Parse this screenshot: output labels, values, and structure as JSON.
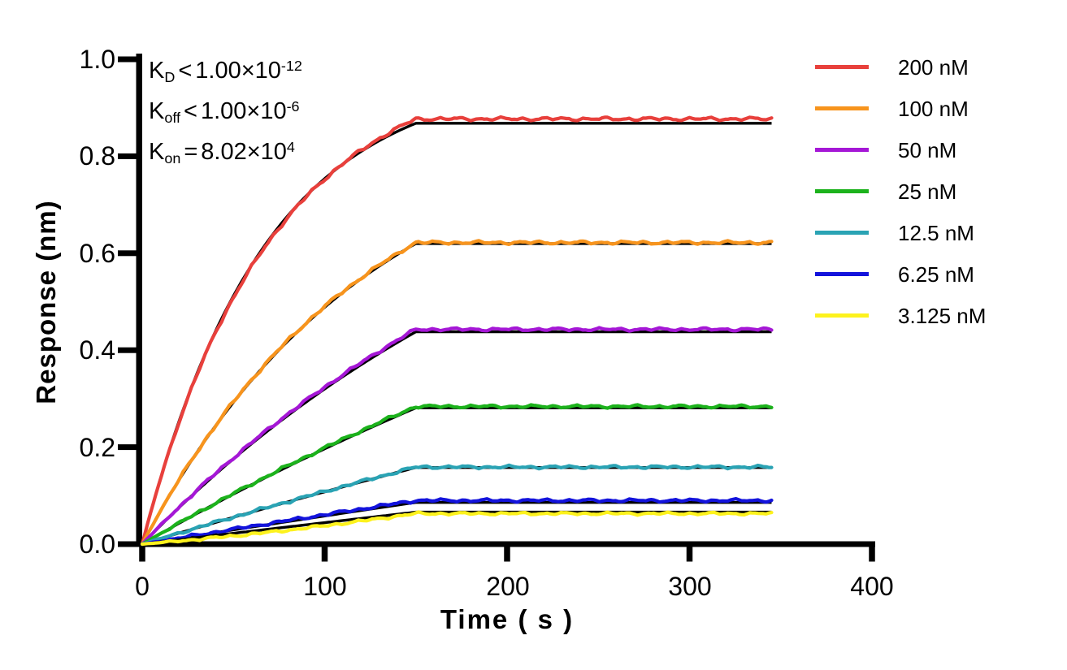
{
  "chart_data": {
    "type": "line",
    "title": "",
    "xlabel": "Time ( s )",
    "ylabel": "Response (nm)",
    "xlim": [
      0,
      400
    ],
    "ylim": [
      0.0,
      1.0
    ],
    "x_ticks": [
      "0",
      "100",
      "200",
      "300",
      "400"
    ],
    "y_ticks": [
      "0.0",
      "0.2",
      "0.4",
      "0.6",
      "0.8",
      "1.0"
    ],
    "grid": "off",
    "legend_position": "right-outside",
    "association_end_s": 150,
    "end_s": 345,
    "fit_color": "#000000",
    "model": "one-phase association to plateau, flat dissociation; smooth black curves are global kinetic fits over noisy colored data traces",
    "kinetics_annotation": {
      "lines": [
        {
          "k": "K",
          "sub": "D",
          "rel": "<",
          "mantissa": "1.00×10",
          "exp": "-12"
        },
        {
          "k": "K",
          "sub": "off",
          "rel": "<",
          "mantissa": "1.00×10",
          "exp": "-6"
        },
        {
          "k": "K",
          "sub": "on",
          "rel": "=",
          "mantissa": "8.02×10",
          "exp": "4"
        }
      ]
    },
    "series": [
      {
        "name": "200 nM",
        "concentration_nM": 200,
        "color": "#e8403c",
        "plateau_response_nm": 0.877,
        "fit_plateau": 0.868,
        "k_obs_per_s": 0.015,
        "noise_amp": 0.004,
        "assoc_offset": -0.01
      },
      {
        "name": "100 nM",
        "concentration_nM": 100,
        "color": "#f7941d",
        "plateau_response_nm": 0.622,
        "fit_plateau": 0.62,
        "k_obs_per_s": 0.008,
        "noise_amp": 0.0038,
        "assoc_offset": 0
      },
      {
        "name": "50 nM",
        "concentration_nM": 50,
        "color": "#a517d6",
        "plateau_response_nm": 0.443,
        "fit_plateau": 0.438,
        "k_obs_per_s": 0.004,
        "noise_amp": 0.0035,
        "assoc_offset": 0
      },
      {
        "name": "25 nM",
        "concentration_nM": 25,
        "color": "#1cb21c",
        "plateau_response_nm": 0.284,
        "fit_plateau": 0.281,
        "k_obs_per_s": 0.002,
        "noise_amp": 0.0035,
        "assoc_offset": 0
      },
      {
        "name": "12.5 nM",
        "concentration_nM": 12.5,
        "color": "#2aa3b4",
        "plateau_response_nm": 0.159,
        "fit_plateau": 0.158,
        "k_obs_per_s": 0.001,
        "noise_amp": 0.0035,
        "assoc_offset": 0
      },
      {
        "name": "6.25 nM",
        "concentration_nM": 6.25,
        "color": "#1313dc",
        "plateau_response_nm": 0.09,
        "fit_plateau": 0.086,
        "k_obs_per_s": 0.0005,
        "noise_amp": 0.0035,
        "assoc_offset": 0
      },
      {
        "name": "3.125 nM",
        "concentration_nM": 3.125,
        "color": "#fdf21d",
        "plateau_response_nm": 0.063,
        "fit_plateau": 0.066,
        "k_obs_per_s": 0.00025,
        "noise_amp": 0.003,
        "assoc_offset": -0.005
      }
    ]
  }
}
